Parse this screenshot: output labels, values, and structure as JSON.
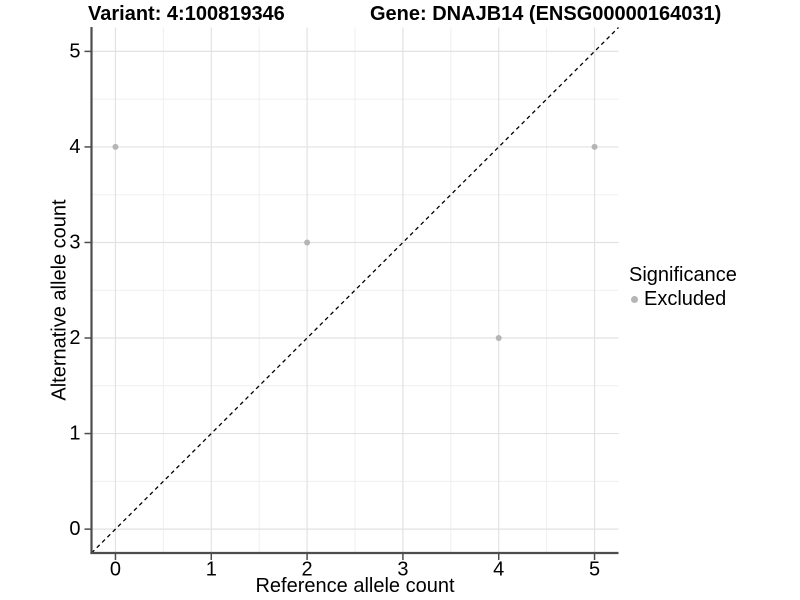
{
  "chart_data": {
    "type": "scatter",
    "title_left": "Variant: 4:100819346",
    "title_right": "Gene: DNAJB14 (ENSG00000164031)",
    "xlabel": "Reference allele count",
    "ylabel": "Alternative allele count",
    "xlim": [
      -0.25,
      5.25
    ],
    "ylim": [
      -0.25,
      5.25
    ],
    "xticks": [
      0,
      1,
      2,
      3,
      4,
      5
    ],
    "yticks": [
      0,
      1,
      2,
      3,
      4,
      5
    ],
    "minor_step": 0.5,
    "grid": true,
    "series": [
      {
        "name": "Excluded",
        "color": "#b5b5b5",
        "points": [
          {
            "x": 0,
            "y": 4
          },
          {
            "x": 2,
            "y": 3
          },
          {
            "x": 4,
            "y": 2
          },
          {
            "x": 5,
            "y": 4
          }
        ]
      }
    ],
    "reference_line": {
      "type": "diagonal-identity",
      "style": "dashed",
      "color": "#000000"
    },
    "legend": {
      "title": "Significance",
      "position": "right",
      "items": [
        {
          "label": "Excluded",
          "color": "#b5b5b5"
        }
      ]
    },
    "colors": {
      "background": "#ffffff",
      "grid_major": "#e2e2e2",
      "grid_minor": "#efefef",
      "axis": "#4d4d4d",
      "text": "#000000"
    }
  }
}
